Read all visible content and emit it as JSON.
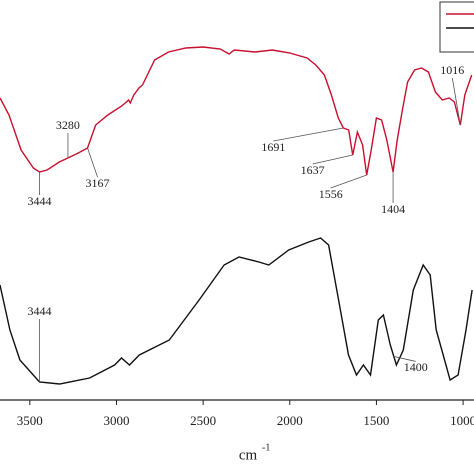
{
  "chart_data": {
    "type": "line",
    "x_label": "cm",
    "x_label_superscript": "-1",
    "xlim": [
      3672,
      937
    ],
    "ylim": [
      0,
      100
    ],
    "xticks": [
      3500,
      3000,
      2500,
      2000,
      1500,
      1000
    ],
    "legend": "upper right",
    "series": [
      {
        "color": "#c8102e",
        "x": [
          3672,
          3620,
          3550,
          3480,
          3444,
          3400,
          3330,
          3280,
          3220,
          3167,
          3120,
          3050,
          2970,
          2930,
          2920,
          2900,
          2870,
          2850,
          2830,
          2780,
          2700,
          2600,
          2500,
          2400,
          2350,
          2320,
          2200,
          2100,
          2000,
          1900,
          1850,
          1800,
          1760,
          1720,
          1691,
          1660,
          1637,
          1610,
          1580,
          1556,
          1530,
          1500,
          1470,
          1440,
          1404,
          1380,
          1350,
          1320,
          1280,
          1240,
          1200,
          1160,
          1120,
          1080,
          1050,
          1016,
          990,
          950
        ],
        "values": [
          75.5,
          71.25,
          62.5,
          58,
          57,
          57.5,
          59.5,
          60.5,
          61.75,
          63,
          68.75,
          71.25,
          73.5,
          75,
          74.25,
          76.25,
          78,
          78.75,
          80.5,
          85,
          87,
          88,
          88.25,
          87.75,
          86.5,
          87.5,
          87,
          87.5,
          86.75,
          85.5,
          83.75,
          81.25,
          76.25,
          70.5,
          68,
          67.5,
          61.25,
          67,
          63.75,
          56.25,
          62.5,
          70.5,
          70,
          65,
          57,
          65,
          72.5,
          79.5,
          82.5,
          83,
          82,
          77,
          75,
          75.5,
          74.5,
          68.75,
          76.25,
          81.25
        ]
      },
      {
        "color": "#111111",
        "x": [
          3672,
          3615,
          3557,
          3444,
          3328,
          3155,
          3011,
          2971,
          2925,
          2868,
          2695,
          2523,
          2379,
          2293,
          2178,
          2121,
          2006,
          1891,
          1822,
          1776,
          1718,
          1661,
          1615,
          1575,
          1534,
          1489,
          1460,
          1420,
          1385,
          1345,
          1287,
          1230,
          1190,
          1155,
          1115,
          1075,
          1029,
          983,
          948
        ],
        "values": [
          28.75,
          17.5,
          10,
          4.5,
          4,
          5.5,
          8.75,
          10.5,
          8.75,
          11.25,
          15,
          25,
          33.75,
          35.75,
          34.5,
          33.75,
          37.5,
          39.5,
          40.5,
          38.75,
          25,
          11.25,
          6.25,
          8.75,
          6.25,
          20,
          21.25,
          13.75,
          8.75,
          12.5,
          27.5,
          33.75,
          31.25,
          17.5,
          11.25,
          5,
          6.25,
          17.5,
          27.5
        ]
      }
    ],
    "annotations": [
      {
        "x": 3444,
        "series": 0
      },
      {
        "x": 3280,
        "series": 0
      },
      {
        "x": 3167,
        "series": 0
      },
      {
        "x": 1691,
        "series": 0
      },
      {
        "x": 1637,
        "series": 0
      },
      {
        "x": 1556,
        "series": 0
      },
      {
        "x": 1404,
        "series": 0
      },
      {
        "x": 1016,
        "series": 0
      },
      {
        "x": 3444,
        "series": 1
      },
      {
        "x": 1400,
        "series": 1
      }
    ]
  }
}
